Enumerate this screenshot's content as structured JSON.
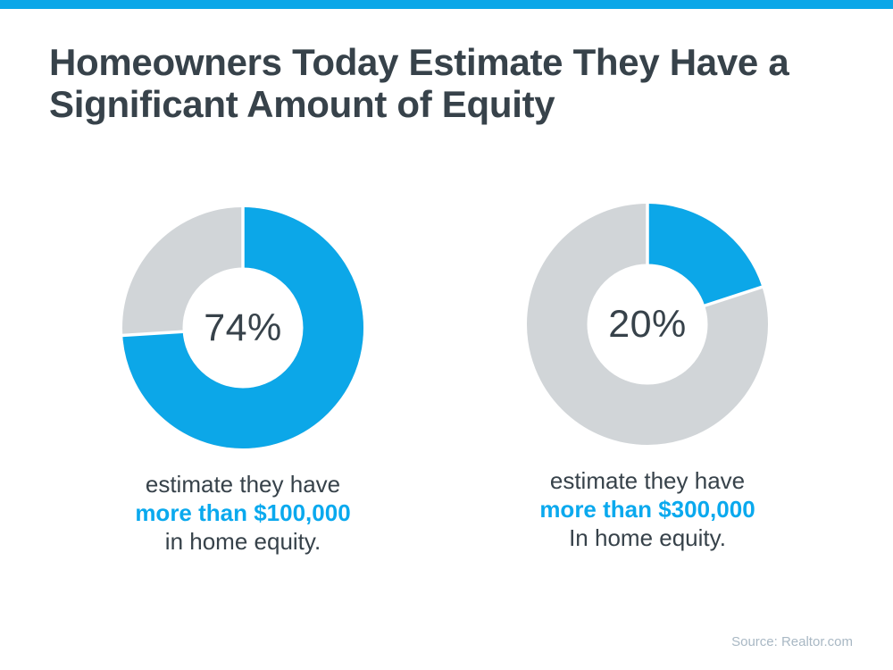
{
  "page": {
    "colors": {
      "accent_blue": "#0ca7e8",
      "highlight_text_blue": "#0aa9ee",
      "donut_gray": "#d1d5d8",
      "dark_text": "#37424a",
      "source_text": "#a9b8c4"
    },
    "source_label": "Source: Realtor.com"
  },
  "header": {
    "title_line1": "Homeowners Today Estimate They Have a",
    "title_line2": "Significant Amount of Equity",
    "title_full": "Homeowners Today Estimate They Have a Significant Amount of Equity"
  },
  "chart_data": [
    {
      "type": "pie",
      "subtype": "donut",
      "center_label": "74%",
      "caption": {
        "line1": "estimate they have",
        "highlight": "more than $100,000",
        "line3": "in home equity."
      },
      "slices": [
        {
          "label": "estimate they have more than $100,000 in home equity",
          "value": 74,
          "color": "#0ca7e8"
        },
        {
          "label": "other",
          "value": 26,
          "color": "#d1d5d8"
        }
      ],
      "start_angle_deg": 0,
      "direction": "clockwise",
      "legend_position": "none"
    },
    {
      "type": "pie",
      "subtype": "donut",
      "center_label": "20%",
      "caption": {
        "line1": "estimate they have",
        "highlight": "more than $300,000",
        "line3": "In home equity."
      },
      "slices": [
        {
          "label": "estimate they have more than $300,000 in home equity",
          "value": 20,
          "color": "#0ca7e8"
        },
        {
          "label": "other",
          "value": 80,
          "color": "#d1d5d8"
        }
      ],
      "start_angle_deg": 0,
      "direction": "clockwise",
      "legend_position": "none"
    }
  ]
}
